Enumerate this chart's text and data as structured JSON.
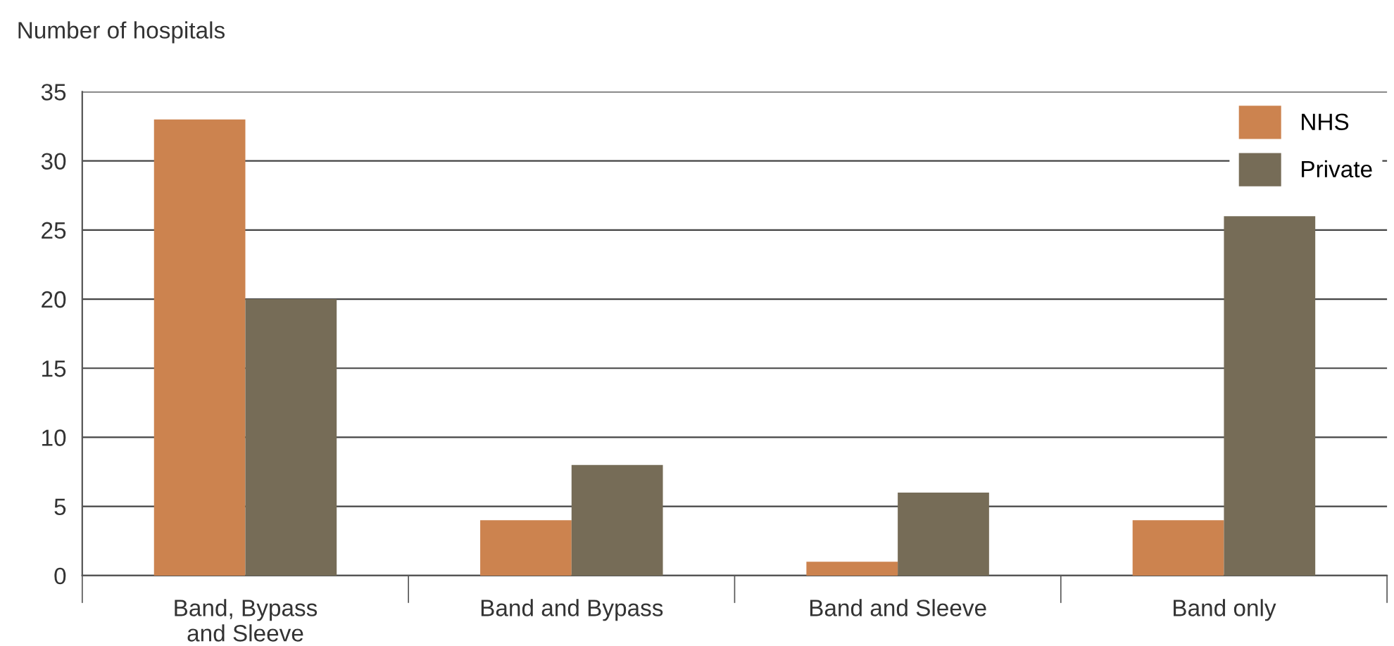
{
  "chart_data": {
    "type": "bar",
    "ylabel": "Number of hospitals",
    "categories": [
      "Band, Bypass and Sleeve",
      "Band and Bypass",
      "Band and Sleeve",
      "Band only"
    ],
    "series": [
      {
        "name": "NHS",
        "color": "#cc834f",
        "values": [
          33,
          4,
          1,
          4
        ]
      },
      {
        "name": "Private",
        "color": "#766c57",
        "values": [
          20,
          8,
          6,
          26
        ]
      }
    ],
    "ylim": [
      0,
      35
    ],
    "yticks": [
      0,
      5,
      10,
      15,
      20,
      25,
      30,
      35
    ],
    "grid": "y",
    "legend": "top right"
  }
}
